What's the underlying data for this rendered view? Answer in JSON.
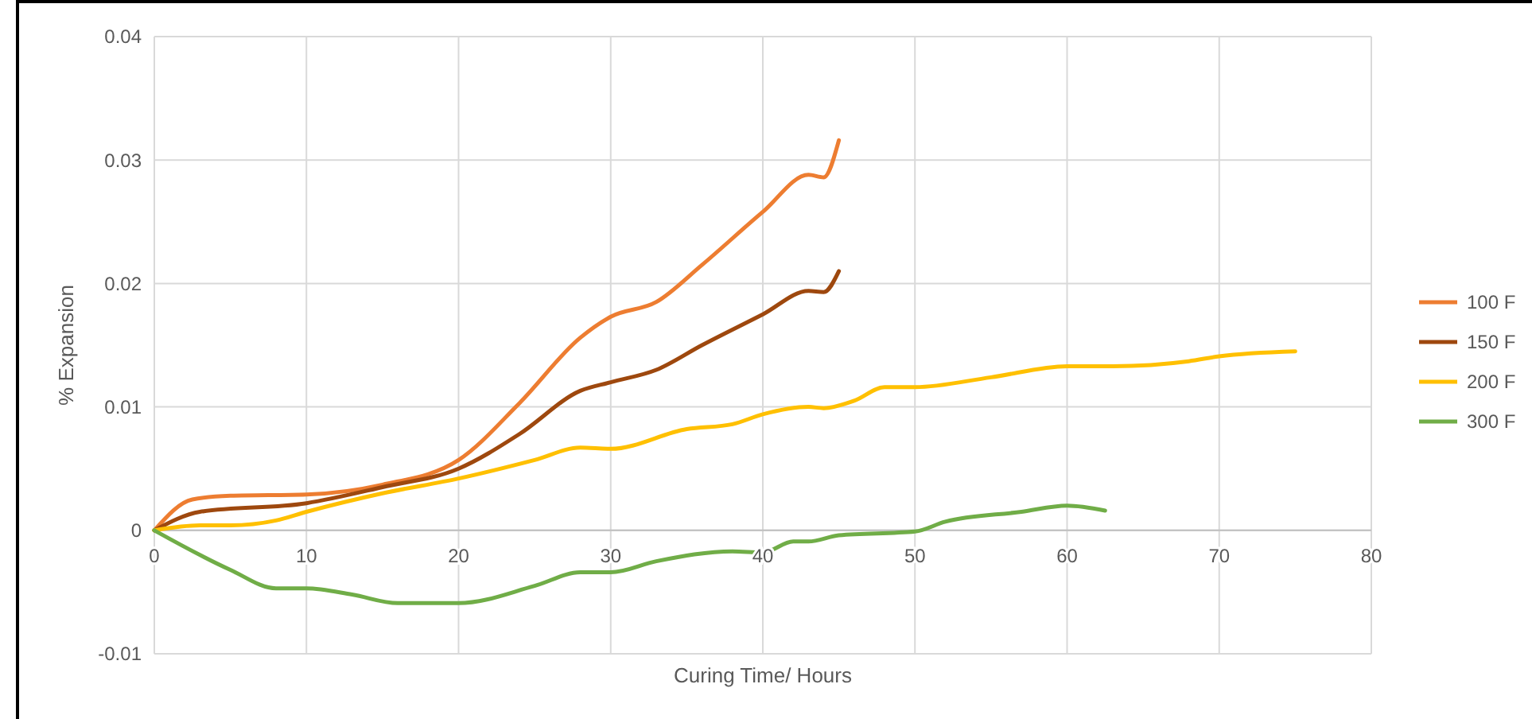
{
  "chart_data": {
    "type": "line",
    "xlabel": "Curing Time/ Hours",
    "ylabel": "% Expansion",
    "xlim": [
      0,
      80
    ],
    "xticks": [
      0,
      10,
      20,
      30,
      40,
      50,
      60,
      70,
      80
    ],
    "ylim": [
      -0.01,
      0.04
    ],
    "yticks": [
      -0.01,
      0,
      0.01,
      0.02,
      0.03,
      0.04
    ],
    "grid": true,
    "legend": "right",
    "marker": "none",
    "line_style": "solid",
    "series": [
      {
        "name": "100 F",
        "color": "#ed7d31",
        "x": [
          0,
          2.5,
          5,
          10,
          15,
          20,
          24,
          28,
          30,
          33,
          36,
          40,
          43,
          44,
          45
        ],
        "values": [
          0,
          0.0025,
          0.0028,
          0.0029,
          0.0037,
          0.0057,
          0.0103,
          0.0156,
          0.0173,
          0.0185,
          0.0215,
          0.0258,
          0.0288,
          0.0286,
          0.0316
        ]
      },
      {
        "name": "150 F",
        "color": "#9e480e",
        "x": [
          0,
          3,
          10,
          15,
          20,
          24,
          28,
          30,
          33,
          36,
          40,
          43,
          44,
          45
        ],
        "values": [
          0,
          0.0015,
          0.0022,
          0.0035,
          0.005,
          0.0078,
          0.0113,
          0.012,
          0.013,
          0.015,
          0.0175,
          0.0194,
          0.0193,
          0.021
        ]
      },
      {
        "name": "200 F",
        "color": "#ffc000",
        "x": [
          0,
          3,
          5,
          8,
          10,
          15,
          20,
          25,
          28,
          30,
          35,
          38,
          40,
          43,
          44,
          46,
          48,
          50,
          55,
          60,
          63,
          68,
          70,
          75
        ],
        "values": [
          0,
          0.0004,
          0.0004,
          0.0008,
          0.0015,
          0.003,
          0.0042,
          0.0057,
          0.0067,
          0.0066,
          0.0082,
          0.0086,
          0.0094,
          0.01,
          0.0099,
          0.0105,
          0.0116,
          0.0116,
          0.0124,
          0.0133,
          0.0133,
          0.0137,
          0.0141,
          0.0145
        ]
      },
      {
        "name": "300 F",
        "color": "#70ad47",
        "x": [
          0,
          5,
          8,
          10,
          13,
          16,
          20,
          25,
          28,
          30,
          33,
          38,
          40,
          42,
          43,
          45,
          50,
          52,
          57,
          60,
          62.5
        ],
        "values": [
          0,
          -0.0032,
          -0.0047,
          -0.0047,
          -0.0052,
          -0.0059,
          -0.0059,
          -0.0045,
          -0.0034,
          -0.0034,
          -0.0025,
          -0.0017,
          -0.0018,
          -0.0009,
          -0.0009,
          -0.0004,
          -0.0001,
          0.0007,
          0.0015,
          0.002,
          0.0016
        ]
      }
    ]
  }
}
